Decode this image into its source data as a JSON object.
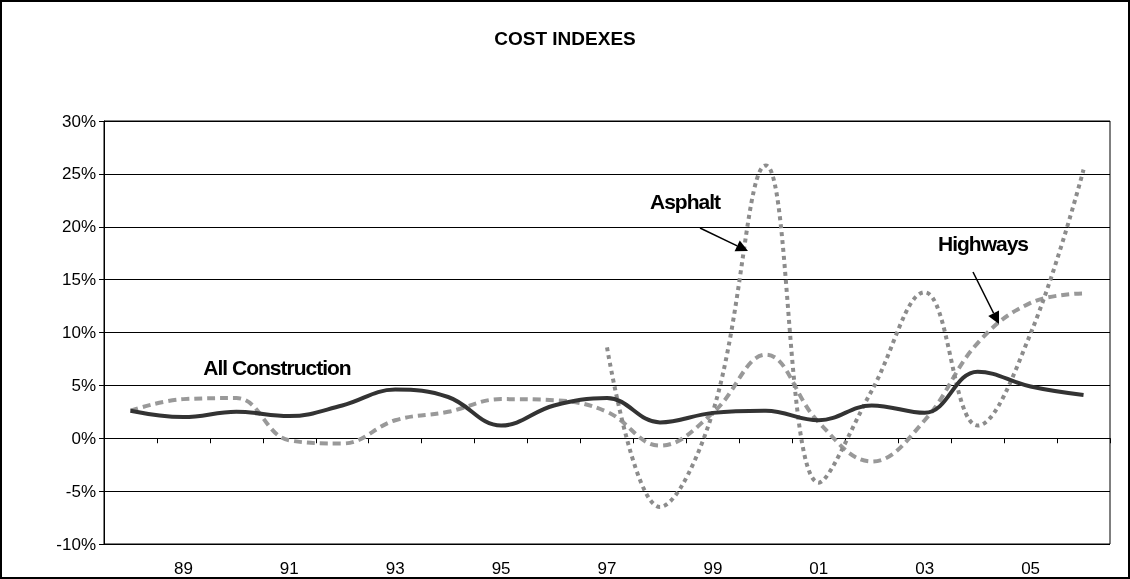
{
  "chart_data": {
    "type": "line",
    "title": "COST INDEXES",
    "categories": [
      null,
      "89",
      null,
      "91",
      null,
      "93",
      null,
      "95",
      null,
      "97",
      null,
      "99",
      null,
      "01",
      null,
      "03",
      null,
      "05",
      null
    ],
    "series": [
      {
        "name": "All Construction",
        "color": "#333333",
        "line_style": "solid",
        "values": [
          2.6,
          2.0,
          2.5,
          2.1,
          3.1,
          4.6,
          3.9,
          1.2,
          3.1,
          3.8,
          1.5,
          2.4,
          2.6,
          1.7,
          3.1,
          2.4,
          6.3,
          4.9,
          4.1
        ]
      },
      {
        "name": "Highways",
        "color": "#999999",
        "line_style": "dashed",
        "values": [
          2.6,
          3.7,
          3.8,
          -0.2,
          -0.5,
          1.7,
          2.5,
          3.7,
          3.6,
          2.5,
          -0.7,
          2.4,
          7.9,
          1.5,
          -2.2,
          1.7,
          9.0,
          12.8,
          13.7
        ]
      },
      {
        "name": "Asphalt",
        "color": "#8c8c8c",
        "line_style": "dotted",
        "values": [
          null,
          null,
          null,
          null,
          null,
          null,
          null,
          null,
          null,
          8.6,
          -6.5,
          2.5,
          25.8,
          -4.2,
          4.5,
          13.8,
          1.2,
          9.9,
          25.4
        ]
      }
    ],
    "ylim": [
      -10,
      30
    ],
    "yticks": [
      {
        "value": -10,
        "label": "-10%"
      },
      {
        "value": -5,
        "label": "-5%"
      },
      {
        "value": 0,
        "label": "0%"
      },
      {
        "value": 5,
        "label": "5%"
      },
      {
        "value": 10,
        "label": "10%"
      },
      {
        "value": 15,
        "label": "15%"
      },
      {
        "value": 20,
        "label": "20%"
      },
      {
        "value": 25,
        "label": "25%"
      },
      {
        "value": 30,
        "label": "30%"
      }
    ],
    "grid": "y",
    "legend": false,
    "marker": "none"
  }
}
